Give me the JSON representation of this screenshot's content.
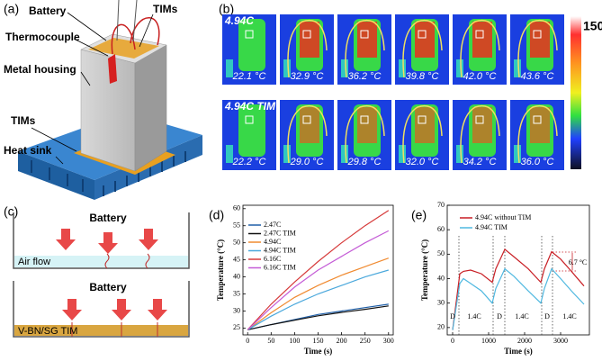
{
  "panels": {
    "labels": [
      "(a)",
      "(b)",
      "(c)",
      "(d)",
      "(e)"
    ],
    "a": {
      "labels": [
        "Battery",
        "Thermocouple",
        "TIMs",
        "Metal housing",
        "TIMs",
        "Heat sink"
      ]
    },
    "b": {
      "rows": [
        {
          "name": "4.94C",
          "temps": [
            "22.1 °C",
            "32.9 °C",
            "36.2 °C",
            "39.8 °C",
            "42.0 °C",
            "43.6 °C"
          ]
        },
        {
          "name": "4.94C TIM",
          "temps": [
            "22.2 °C",
            "29.0 °C",
            "29.8 °C",
            "32.0 °C",
            "34.2 °C",
            "36.0 °C"
          ]
        }
      ],
      "scale_max": "150.0"
    },
    "c": {
      "top": {
        "battery": "Battery",
        "layer": "Air flow"
      },
      "bottom": {
        "battery": "Battery",
        "layer": "V-BN/SG TIM"
      }
    }
  },
  "chart_data": [
    {
      "type": "line",
      "xlabel": "Time (s)",
      "ylabel": "Temperature (°C)",
      "x": [
        0,
        50,
        100,
        150,
        200,
        250,
        300
      ],
      "series": [
        {
          "name": "2.47C",
          "color": "#1f5fa8",
          "values": [
            24.5,
            26,
            27.5,
            29,
            30,
            31,
            32
          ]
        },
        {
          "name": "2.47C TIM",
          "color": "#111111",
          "values": [
            24.5,
            26,
            27.3,
            28.6,
            29.6,
            30.5,
            31.5
          ]
        },
        {
          "name": "4.94C",
          "color": "#f08a30",
          "values": [
            24.5,
            29.5,
            34,
            37.5,
            40.5,
            43,
            45.5
          ]
        },
        {
          "name": "4.94C TIM",
          "color": "#4aa8dc",
          "values": [
            24.5,
            28.5,
            32,
            35,
            37.5,
            40,
            42
          ]
        },
        {
          "name": "6.16C",
          "color": "#d63a3a",
          "values": [
            24.5,
            32,
            38.5,
            44.5,
            50,
            55,
            59.5
          ]
        },
        {
          "name": "6.16C TIM",
          "color": "#c45cd6",
          "values": [
            24.5,
            31,
            37,
            42,
            46,
            50,
            53.5
          ]
        }
      ],
      "xlim": [
        -10,
        310
      ],
      "ylim": [
        23,
        61
      ],
      "xticks": [
        0,
        50,
        100,
        150,
        200,
        250,
        300
      ],
      "yticks": [
        25,
        30,
        35,
        40,
        45,
        50,
        55,
        60
      ],
      "legend": "top-left"
    },
    {
      "type": "line",
      "xlabel": "Time (s)",
      "ylabel": "Temperature (°C)",
      "x": [
        0,
        200,
        300,
        500,
        800,
        1100,
        1200,
        1450,
        1700,
        2100,
        2450,
        2550,
        2750,
        3000,
        3300,
        3650
      ],
      "series": [
        {
          "name": "4.94C without TIM",
          "color": "#c81e24",
          "values": [
            19,
            42,
            43,
            43.5,
            42,
            38.5,
            44,
            52,
            49,
            44,
            38.5,
            44,
            51,
            48,
            43,
            37
          ]
        },
        {
          "name": "4.94C TIM",
          "color": "#4fb8e0",
          "values": [
            19,
            38,
            40,
            38,
            35,
            30,
            36,
            44,
            41,
            35,
            30,
            36,
            44,
            40,
            35,
            29.5
          ]
        }
      ],
      "xlim": [
        -150,
        3800
      ],
      "ylim": [
        17,
        70
      ],
      "xticks": [
        0,
        1000,
        2000,
        3000
      ],
      "yticks": [
        20,
        30,
        40,
        50,
        60,
        70
      ],
      "legend": "top-right",
      "annotations": [
        "D",
        "1.4C",
        "D",
        "1.4C",
        "D",
        "1.4C",
        "6.7 °C"
      ]
    }
  ]
}
